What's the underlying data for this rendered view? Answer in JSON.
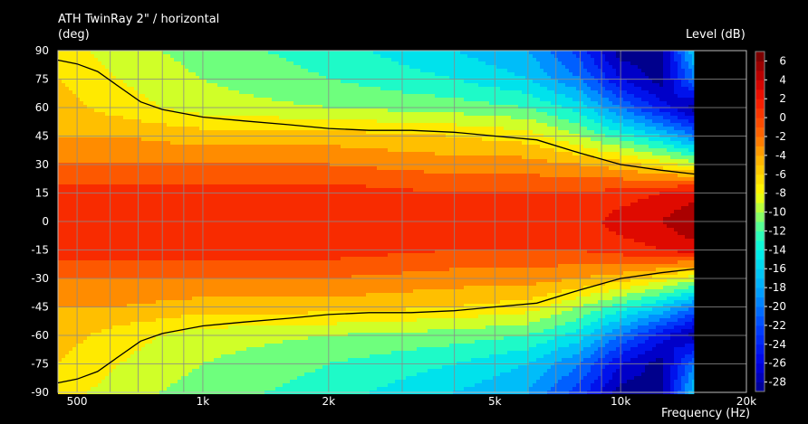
{
  "chart_data": {
    "type": "heatmap",
    "title": "ATH TwinRay 2\" / horizontal",
    "ylabel": "(deg)",
    "xlabel": "Frequency  (Hz)",
    "colorbar_label": "Level  (dB)",
    "x_scale": "log",
    "xlim": [
      450,
      20000
    ],
    "ylim": [
      -90,
      90
    ],
    "x_ticks": [
      {
        "value": 500,
        "label": "500"
      },
      {
        "value": 1000,
        "label": "1k"
      },
      {
        "value": 2000,
        "label": "2k"
      },
      {
        "value": 5000,
        "label": "5k"
      },
      {
        "value": 10000,
        "label": "10k"
      },
      {
        "value": 20000,
        "label": "20k"
      }
    ],
    "y_ticks": [
      90,
      75,
      60,
      45,
      30,
      15,
      0,
      -15,
      -30,
      -45,
      -60,
      -75,
      -90
    ],
    "colorbar_ticks": [
      6,
      4,
      2,
      0,
      -2,
      -4,
      -6,
      -8,
      -10,
      -12,
      -14,
      -16,
      -18,
      -20,
      -22,
      -24,
      -26,
      -28
    ],
    "colorbar_range": [
      -29,
      7
    ],
    "data_max_frequency": 15000,
    "grid": true,
    "contour_level_db": -6,
    "contour_6db_angle": [
      {
        "f": 450,
        "deg": 85
      },
      {
        "f": 500,
        "deg": 83
      },
      {
        "f": 560,
        "deg": 79
      },
      {
        "f": 630,
        "deg": 71
      },
      {
        "f": 710,
        "deg": 63
      },
      {
        "f": 800,
        "deg": 59
      },
      {
        "f": 1000,
        "deg": 55
      },
      {
        "f": 1250,
        "deg": 53
      },
      {
        "f": 1600,
        "deg": 51
      },
      {
        "f": 2000,
        "deg": 49
      },
      {
        "f": 2500,
        "deg": 48
      },
      {
        "f": 3150,
        "deg": 48
      },
      {
        "f": 4000,
        "deg": 47
      },
      {
        "f": 5000,
        "deg": 45
      },
      {
        "f": 6300,
        "deg": 43
      },
      {
        "f": 8000,
        "deg": 36
      },
      {
        "f": 10000,
        "deg": 30
      },
      {
        "f": 12500,
        "deg": 27
      },
      {
        "f": 15000,
        "deg": 25
      }
    ],
    "level_field": {
      "description_axis": "columns: frequency (Hz); rows: angle (deg, symmetric); values: level in dB",
      "frequencies": [
        450,
        630,
        1000,
        2000,
        4000,
        6000,
        8000,
        10000,
        12500,
        15000
      ],
      "angles": [
        0,
        15,
        30,
        45,
        60,
        75,
        90
      ],
      "levels": [
        [
          1,
          1,
          1,
          1,
          1,
          2,
          1,
          3,
          4,
          6
        ],
        [
          1,
          1,
          1,
          1,
          0,
          0,
          0,
          1,
          2,
          3
        ],
        [
          -2,
          -2,
          -2,
          -2,
          -3,
          -3,
          -4,
          -5,
          -7,
          -9
        ],
        [
          -4,
          -4,
          -5,
          -5,
          -6,
          -7,
          -10,
          -13,
          -16,
          -20
        ],
        [
          -5,
          -7,
          -9,
          -10,
          -11,
          -12,
          -15,
          -20,
          -25,
          -29
        ],
        [
          -6,
          -8,
          -10,
          -12,
          -14,
          -16,
          -20,
          -26,
          -29,
          -20
        ],
        [
          -7,
          -9,
          -11,
          -13,
          -16,
          -18,
          -23,
          -29,
          -29,
          -16
        ]
      ]
    }
  }
}
